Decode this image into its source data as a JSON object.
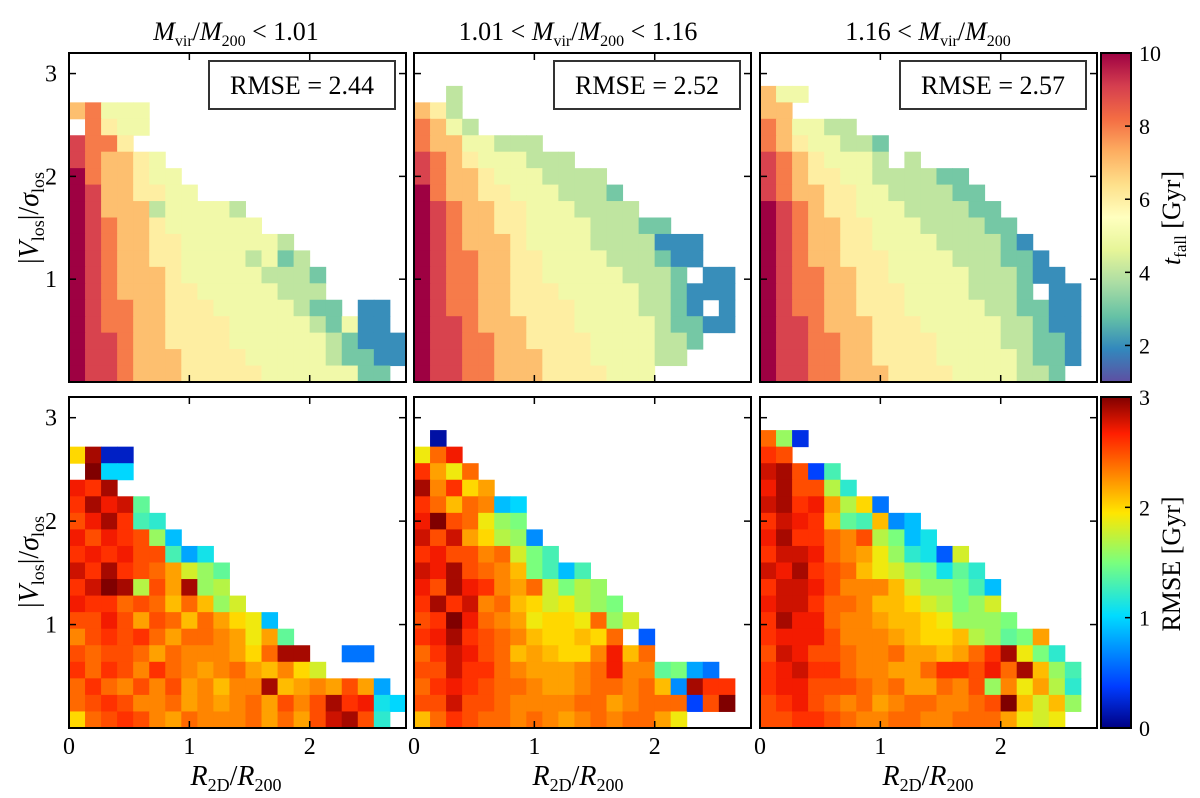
{
  "figure": {
    "column_titles": [
      {
        "sym1": "M",
        "sub1": "vir",
        "mid": "/",
        "sym2": "M",
        "sub2": "200",
        "pre": "",
        "post": " < 1.01"
      },
      {
        "pre": "1.01 < ",
        "sym1": "M",
        "sub1": "vir",
        "mid": "/",
        "sym2": "M",
        "sub2": "200",
        "post": " < 1.16"
      },
      {
        "pre": "1.16 < ",
        "sym1": "M",
        "sub1": "vir",
        "mid": "/",
        "sym2": "M",
        "sub2": "200",
        "post": ""
      }
    ],
    "ylabel": {
      "open": "|",
      "sym1": "V",
      "sub1": "los",
      "mid": "|/",
      "sym2": "σ",
      "sub2": "los"
    },
    "xlabel": {
      "sym1": "R",
      "sub1": "2D",
      "mid": "/",
      "sym2": "R",
      "sub2": "200"
    },
    "rmse_boxes": [
      "RMSE = 2.44",
      "RMSE = 2.52",
      "RMSE = 2.57"
    ],
    "cbar_top": {
      "label_sym": "t",
      "label_sub": "fall",
      "label_unit": " [Gyr]",
      "ticks": [
        "2",
        "4",
        "6",
        "8",
        "10"
      ],
      "range": [
        1,
        10
      ]
    },
    "cbar_bottom": {
      "label": "RMSE [Gyr]",
      "ticks": [
        "0",
        "1",
        "2",
        "3"
      ],
      "range": [
        0,
        3
      ]
    },
    "x_ticks": [
      "0",
      "1",
      "2"
    ],
    "y_ticks": [
      "1",
      "2",
      "3"
    ]
  },
  "chart_data": [
    {
      "type": "heatmap",
      "title": "M_vir/M_200 < 1.01",
      "xlabel": "R_2D/R_200",
      "ylabel": "|V_los|/sigma_los",
      "colorbar": "t_fall [Gyr]",
      "colormap": "Spectral_r",
      "xlim": [
        0,
        2.8
      ],
      "ylim": [
        0,
        3.2
      ],
      "bin_width_x": 0.1333,
      "bin_width_y": 0.16,
      "annotation": "RMSE = 2.44",
      "rows_top_to_bottom": [
        "- - - - - - - - - - - - - - - - - - - - -",
        "- - - - - - - - - - - - - - - - - - - - -",
        "7 8 5 5 5 - - - - - - - - - - - - - - - -",
        "- 8 6 5 5 - - - - - - - - - - - - - - - -",
        "9 8 8 6 - - - - - - - - - - - - - - - - -",
        "9 8 7 7 6 5 - - - - - - - - - - - - - - -",
        "10 8 7 7 6 5 5 - - - - - - - - - - - - - -",
        "10 9 7 7 6 6 5 5 - - - - - - - - - - - - -",
        "10 9 7 7 7 4 5 5 5 5 4 - - - - - - - - - -",
        "10 9 8 7 7 6 5 5 5 5 5 5 - - - - - - - - -",
        "10 9 8 7 7 6 6 5 5 5 5 5 5 4 - - - - - - -",
        "10 9 8 7 7 6 6 5 5 5 5 4 5 3 4 - - - - - -",
        "10 9 8 7 7 7 6 5 5 5 5 5 4 4 4 3 - - - - -",
        "10 9 8 7 7 7 6 6 5 5 5 5 5 4 4 4 - - - - -",
        "10 9 8 8 7 7 6 6 6 5 5 5 5 5 4 3 3 - 2 2 -",
        "10 9 8 8 7 7 6 6 6 6 5 5 5 5 5 4 3 5 2 2 -",
        "10 9 9 8 7 7 6 6 6 6 5 5 5 5 5 5 4 3 2 2 2",
        "10 9 9 8 7 7 7 6 6 6 6 5 5 5 5 5 4 3 3 2 2",
        "10 9 9 8 7 7 7 6 6 6 6 6 5 5 5 5 5 5 3 3 -"
      ]
    },
    {
      "type": "heatmap",
      "title": "1.01 < M_vir/M_200 < 1.16",
      "xlabel": "R_2D/R_200",
      "colorbar": "t_fall [Gyr]",
      "colormap": "Spectral_r",
      "xlim": [
        0,
        2.8
      ],
      "ylim": [
        0,
        3.2
      ],
      "bin_width_x": 0.1333,
      "bin_width_y": 0.16,
      "annotation": "RMSE = 2.52",
      "rows_top_to_bottom": [
        "- - - - - - - - - - - - - - - - - - - - -",
        "- - 4 - - - - - - - - - - - - - - - - - -",
        "7 6 4 - - - - - - - - - - - - - - - - - -",
        "8 7 5 4 - - - - - - - - - - - - - - - - -",
        "8 7 7 5 5 4 4 4 - - - - - - - - - - - - -",
        "9 8 7 6 5 5 5 4 4 4 - - - - - - - - - - -",
        "9 8 7 7 6 5 5 5 4 4 4 4 - - - - - - - - -",
        "10 8 7 7 6 6 5 5 5 4 4 4 3 - - - - - - - -",
        "10 9 8 7 7 6 6 5 5 5 4 4 4 4 - - - - - - -",
        "10 9 8 7 7 6 6 5 5 5 5 4 4 4 3 3 - - - - -",
        "10 9 8 7 7 7 6 5 5 5 5 4 4 4 4 2 2 2 - - -",
        "10 9 8 8 7 7 6 6 5 5 5 5 4 4 4 3 2 2 - - -",
        "10 9 8 8 7 7 6 6 5 5 5 5 5 4 4 4 3 - 2 2 -",
        "10 9 8 8 7 7 6 6 6 5 5 5 5 5 4 4 3 2 2 2 -",
        "10 9 8 8 7 7 6 6 6 6 5 5 5 5 4 4 3 2 - 2 -",
        "10 9 9 8 7 7 7 6 6 6 5 5 5 5 5 4 3 3 2 2 -",
        "10 9 9 8 8 7 7 6 6 6 6 5 5 5 5 4 4 3 - - -",
        "10 9 9 8 8 7 7 7 6 6 6 5 5 5 5 4 4 - - - -",
        "10 9 9 8 8 7 7 7 6 6 6 6 5 5 5 - - - - - -"
      ]
    },
    {
      "type": "heatmap",
      "title": "1.16 < M_vir/M_200",
      "xlabel": "R_2D/R_200",
      "colorbar": "t_fall [Gyr]",
      "colormap": "Spectral_r",
      "xlim": [
        0,
        2.8
      ],
      "ylim": [
        0,
        3.2
      ],
      "bin_width_x": 0.1333,
      "bin_width_y": 0.16,
      "annotation": "RMSE = 2.57",
      "rows_top_to_bottom": [
        "- - - - - - - - - - - - - - - - - - - - -",
        "7 5 5 - - - - - - - - - - - - - - - - - -",
        "7 7 - - - - - - - - - - - - - - - - - - -",
        "8 7 5 5 4 4 - - - - - - - - - - - - - - -",
        "8 7 6 5 5 4 4 3 - - - - - - - - - - - - -",
        "9 8 7 6 5 5 5 4 - 4 - - - - - - - - - - -",
        "9 8 7 6 6 5 5 4 4 4 4 3 3 - - - - - - - -",
        "9 8 7 7 6 6 5 5 4 4 4 4 3 3 - - - - - - -",
        "10 9 8 7 6 6 5 5 5 4 4 4 4 3 3 - - - - - -",
        "10 9 8 7 7 6 6 5 5 5 4 4 4 4 3 3 - - - - -",
        "10 9 8 7 7 6 6 5 5 5 5 4 4 4 4 3 2 - - - -",
        "10 9 8 7 7 6 6 6 5 5 5 5 4 4 4 3 3 2 - - -",
        "10 9 8 8 7 7 6 6 5 5 5 5 5 4 4 4 3 2 2 - -",
        "10 9 8 8 7 7 6 6 6 5 5 5 5 4 4 4 3 - 2 2 -",
        "10 9 8 8 7 7 6 6 6 5 5 5 5 5 4 4 3 3 2 2 -",
        "10 9 9 8 7 7 7 6 6 6 5 5 5 5 5 4 4 3 2 2 -",
        "10 9 9 8 8 7 7 6 6 6 6 5 5 5 5 4 4 3 3 2 -",
        "10 9 9 8 8 7 7 6 6 6 6 5 5 5 5 5 4 3 3 2 -",
        "10 9 9 8 8 7 7 7 6 6 6 6 5 5 5 5 4 4 3 - -"
      ]
    },
    {
      "type": "heatmap",
      "title": "M_vir/M_200 < 1.01 (RMSE)",
      "xlabel": "R_2D/R_200",
      "ylabel": "|V_los|/sigma_los",
      "colorbar": "RMSE [Gyr]",
      "colormap": "jet",
      "xlim": [
        0,
        2.8
      ],
      "ylim": [
        0,
        3.2
      ],
      "bin_width_x": 0.1333,
      "bin_width_y": 0.16,
      "rows_top_to_bottom": [
        "- - - - - - - - - - - - - - - - - - - - -",
        "- - - - - - - - - - - - - - - - - - - - -",
        "2 2.9 0.2 0.2 - - - - - - - - - - - - - - - - -",
        "- 3 1 1 - - - - - - - - - - - - - - - - -",
        "2.7 2.6 2.9 - - - - - - - - - - - - - - - - - -",
        "2.6 2.9 2.7 2.8 1.4 - - - - - - - - - - - - - - - -",
        "2.5 2.7 2.9 2.6 1.3 1.2 - - - - - - - - - - - - - - -",
        "2.7 2.5 2.7 2.6 2.5 1.6 0.9 - - - - - - - - - - - - - -",
        "2.6 2.7 2.6 2.7 2.5 2.5 1.3 0.8 1.1 - - - - - - - - - - - -",
        "2.8 2.6 2.9 2.6 2.5 2.4 2.2 1.8 1.6 1.4 - - - - - - - - - - -",
        "2.6 2.8 3 2.9 1.7 2.5 2.2 2.9 1.6 1.7 - - - - - - - - - - -",
        "2.7 2.6 2.6 2.4 2.5 2.4 2.1 2.4 2.1 1.6 1.8 - - - - - - - - - -",
        "2.5 2.5 2.7 2.5 2.2 2.5 2.4 2.1 2.4 2.2 2 1.9 0.9 - - - - - - - -",
        "2.3 2.5 2.6 2.5 2.6 2.4 2.2 2.4 2.4 2.3 2.2 1.9 2.2 1.4 - - - - - - -",
        "2.5 2.4 2.5 2.5 2.4 2.2 2.4 2.3 2.3 2.3 2.2 2 2.4 2.9 2.9 - - 0.6 0.6 - -",
        "2.6 2.4 2.6 2.5 2.3 2.6 2.4 2.3 2.2 2.3 2.4 2.2 2.1 2.3 2 1.8 - - - - -",
        "2.4 2.6 2.4 2.3 2.5 2.3 2.5 2.2 2.3 2.1 2.3 2.3 2.9 2.1 2.2 2.3 2.2 2.5 2.2 0.8 -",
        "2.4 2.5 2.6 2.5 2.3 2.3 2.4 2.2 2.3 2.2 2.3 2.4 2.2 2.5 2.3 2.5 2.9 2.6 2.7 1.1 1",
        "2 2.4 2.5 2.6 2.5 2.3 2.2 2.4 2.3 2.3 2.3 2.4 2.2 2.4 2.2 2.5 2.8 2.9 2.5 1.2 -"
      ]
    },
    {
      "type": "heatmap",
      "title": "1.01 < M_vir/M_200 < 1.16 (RMSE)",
      "xlabel": "R_2D/R_200",
      "colorbar": "RMSE [Gyr]",
      "colormap": "jet",
      "xlim": [
        0,
        2.8
      ],
      "ylim": [
        0,
        3.2
      ],
      "bin_width_x": 0.1333,
      "bin_width_y": 0.16,
      "rows_top_to_bottom": [
        "- - - - - - - - - - - - - - - - - - - - -",
        "- 0.1 - - - - - - - - - - - - - - - - - - -",
        "1.9 2.4 2.7 - - - - - - - - - - - - - - - - - -",
        "2.6 2.2 1.9 2.4 - - - - - - - - - - - - - - - - -",
        "2.9 2.3 2.6 2 2.2 - - - - - - - - - - - - - - - -",
        "2.6 2.4 2.1 2.4 2.3 0.9 1 - - - - - - - - - - - - - -",
        "2.7 3 2.5 2.4 1.9 1.6 1.5 - - - - - - - - - - - - - -",
        "2.8 2.5 2.8 2.2 2 1.7 1.6 0.7 - - - - - - - - - - - - -",
        "2.6 2.7 2.5 2.5 2.3 2.4 1.8 1.5 1.3 - - - - - - - - - - - -",
        "2.8 2.7 2.9 2.5 2.4 2.3 2.1 1.5 1.3 0.9 1.3 - - - - - - - - - -",
        "2.7 2.5 2.9 2.7 2.6 2.3 2.2 2.4 1.8 1.5 1.7 1.6 - - - - - - - - -",
        "2.6 2.9 2.6 2.8 2.3 2.4 2.1 2 1.8 1.9 1.7 1.6 1.5 - - - - - - - -",
        "2.5 2.6 3 2.7 2.4 2.3 2.2 1.9 2 2 1.9 2.4 1.6 1.8 - - - - - - -",
        "2.6 2.7 2.9 2.6 2.5 2.4 2.3 2.1 2 2 2.1 2 2.4 - 0.5 - - - - - -",
        "2.4 2.6 2.8 2.7 2.5 2.4 2.1 2.2 2.1 2 2 2.3 2.7 2.1 2.4 - - - - - -",
        "2.5 2.5 2.8 2.6 2.6 2.4 2.3 2.2 2.2 2.2 2.3 2.4 2.7 2.3 2.3 1.4 1.5 0.8 0.6 - -",
        "2.4 2.6 2.7 2.6 2.5 2.4 2.4 2.3 2.2 2.2 2.3 2.4 2.4 2.3 2.4 2.1 0.7 2.9 2.6 2.6 -",
        "2.5 2.5 2.8 2.5 2.5 2.4 2.3 2.3 2.3 2.3 2.4 2.4 2.2 2.3 2.4 2.4 2.4 0.4 2.5 3 -",
        "2.1 2.4 2.6 2.5 2.4 2.4 2.3 2.4 2.3 2.2 2.3 2.4 2.3 2.4 2.4 2.2 1.9 - - - -"
      ]
    },
    {
      "type": "heatmap",
      "title": "1.16 < M_vir/M_200 (RMSE)",
      "xlabel": "R_2D/R_200",
      "colorbar": "RMSE [Gyr]",
      "colormap": "jet",
      "xlim": [
        0,
        2.8
      ],
      "ylim": [
        0,
        3.2
      ],
      "bin_width_x": 0.1333,
      "bin_width_y": 0.16,
      "rows_top_to_bottom": [
        "- - - - - - - - - - - - - - - - - - - - -",
        "2.4 1.6 0.3 - - - - - - - - - - - - - - - - - -",
        "2.6 2.5 - - - - - - - - - - - - - - - - - - -",
        "2.8 2.9 2.5 0.4 1.3 - - - - - - - - - - - - - - - -",
        "2.7 2.9 2.5 2.5 1.7 1.2 - - - - - - - - - - - - - - -",
        "2.8 2.9 2.6 2.7 2.2 1.7 2 0.6 - - - - - - - - - - - - -",
        "2.6 2.8 2.7 2.6 2.1 1.4 1.3 2.1 0.7 0.9 - - - - - - - - - - -",
        "2.7 2.9 2.6 2.6 2.4 2.3 2.5 1.7 1.5 0.9 1.1 - - - - - - - - - -",
        "2.6 2.8 2.8 2.7 2.4 2.3 2.2 1.9 1.6 1.2 1.1 0.5 1.8 - - - - - - - -",
        "2.8 2.7 2.9 2.6 2.5 2.4 2.1 1.9 1.8 1.6 1.5 1.1 1.4 1.2 - - - - - - -",
        "2.6 2.8 2.8 2.7 2.5 2.3 2.3 2.3 2.1 1.8 1.6 1.6 1.5 1.3 0.9 - - - - - -",
        "2.7 2.8 2.8 2.6 2.4 2.4 2.3 2.1 2.1 2 1.8 1.7 1.5 1.6 1.8 - - - - - -",
        "2.6 2.9 2.7 2.7 2.4 2.3 2.3 2.2 2.1 2.1 2 1.9 1.6 1.6 1.6 1.5 - - - - -",
        "2.6 2.7 2.7 2.7 2.5 2.3 2.3 2.3 2.2 2.1 2 2 2.1 1.7 1.6 1.4 1.5 2.2 - - -",
        "2.5 2.8 2.7 2.5 2.5 2.4 2.3 2.3 2.4 2.2 2.2 2.1 2.2 2.4 2.6 2.9 1.9 1.5 1.2 - -",
        "2.6 2.7 2.8 2.6 2.6 2.4 2.3 2.3 2.2 2.2 2.4 2.6 2.6 2.5 2.7 2.4 2.9 2.1 1.6 1.3 -",
        "2.6 2.7 2.7 2.5 2.5 2.5 2.4 2.3 2.4 2.2 2.2 2.4 2.3 2.5 1.6 2.3 1.9 2.2 1.7 1.2 -",
        "2.5 2.6 2.7 2.5 2.4 2.3 2.4 2.2 2.3 2.4 2.4 2.3 2.3 2.4 2.5 3 2.1 1.8 2.1 1.6 -",
        "2.5 2.5 2.6 2.6 2.5 2.4 2.3 2.3 2.4 2.4 2.3 2.3 2.4 2.4 2.4 2.2 1.9 1.8 1.9 - -"
      ]
    }
  ]
}
